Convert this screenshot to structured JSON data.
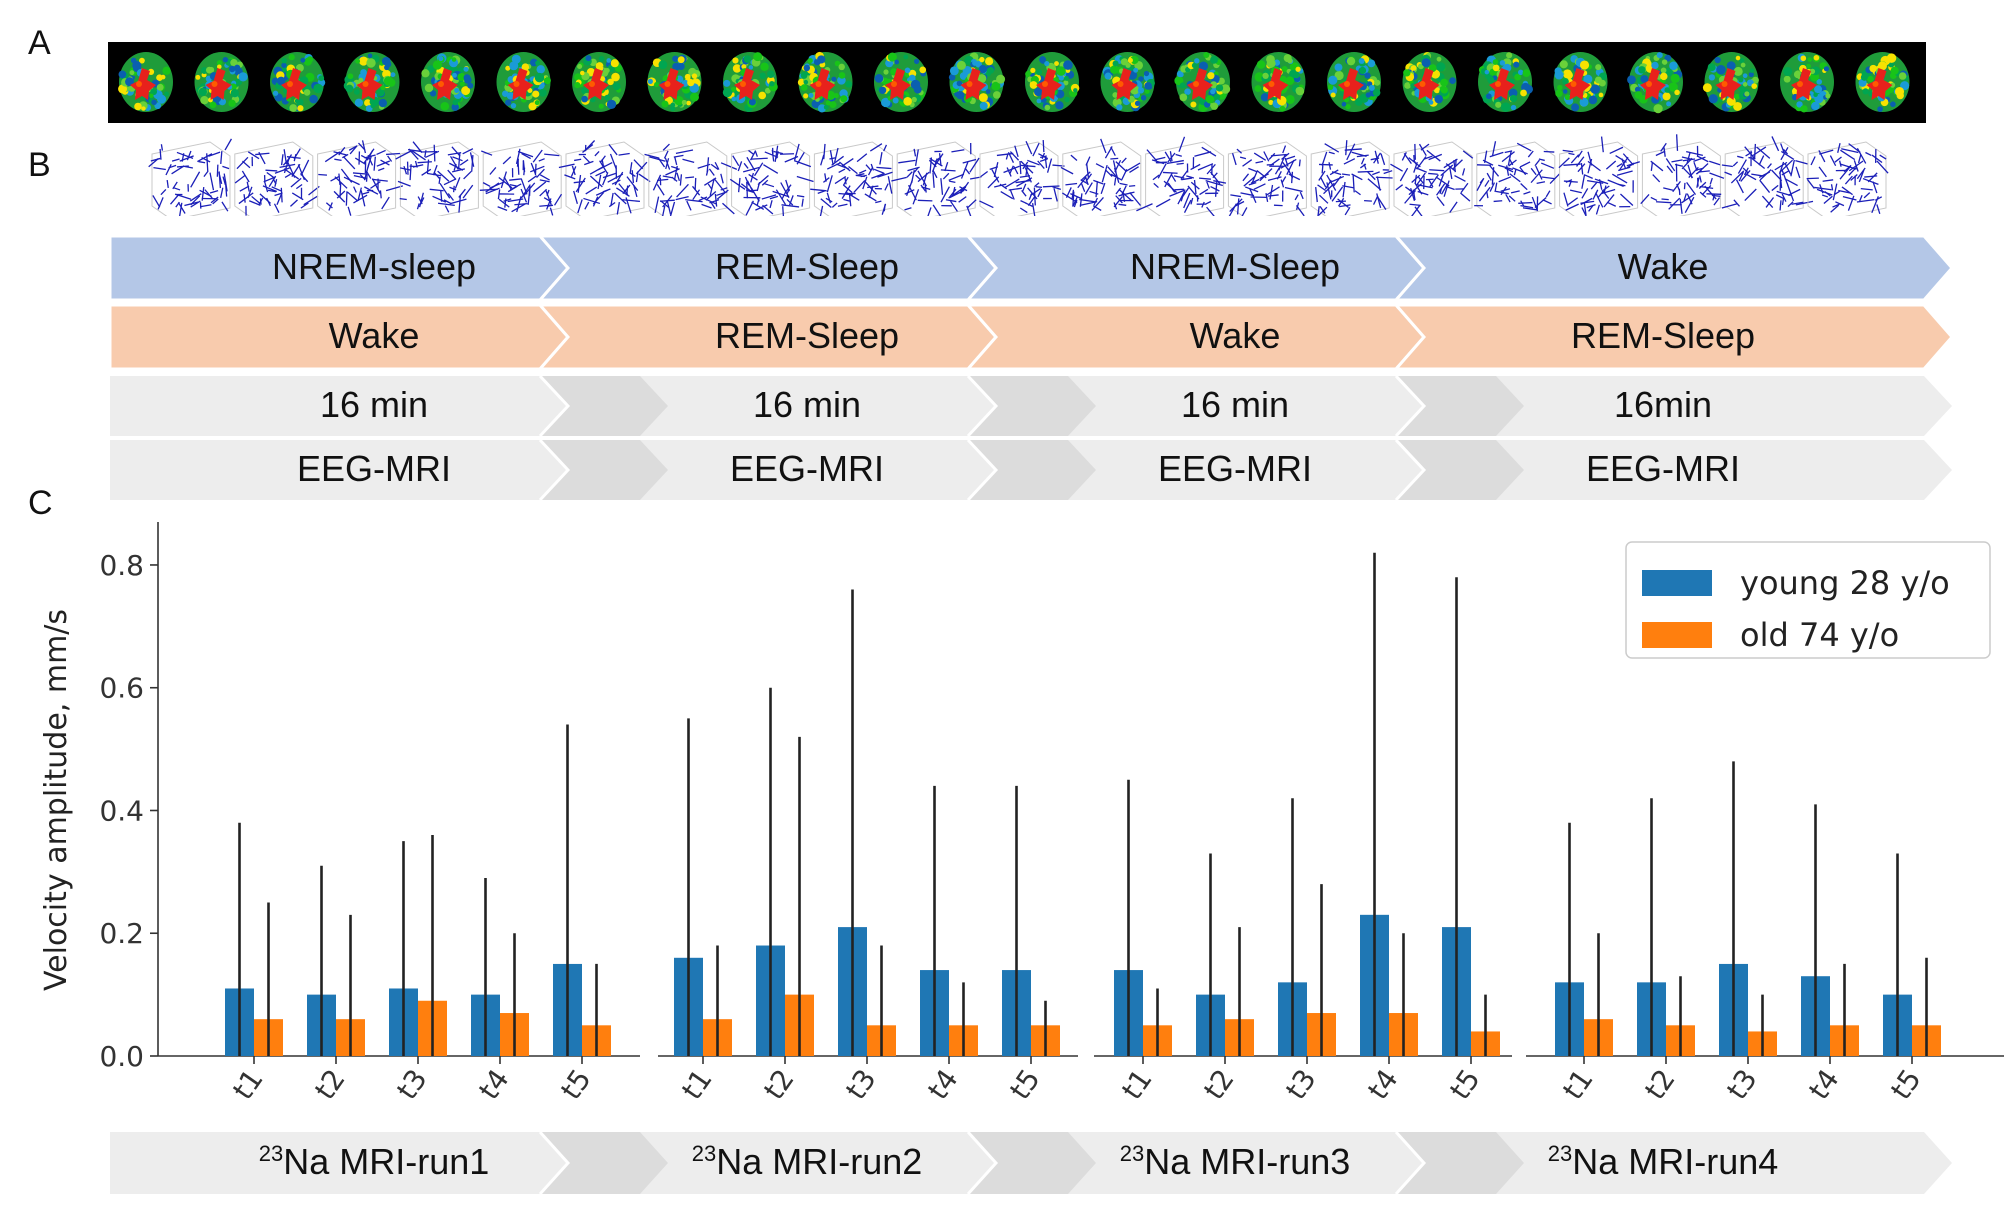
{
  "panels": {
    "a": "A",
    "b": "B",
    "c": "C"
  },
  "brain_slices": {
    "count": 24
  },
  "vector_fields": {
    "count": 21
  },
  "rows": {
    "row1": {
      "color": "#b4c7e7",
      "labels": [
        "NREM-sleep",
        "REM-Sleep",
        "NREM-Sleep",
        "Wake"
      ]
    },
    "row2": {
      "color": "#f8cbad",
      "labels": [
        "Wake",
        "REM-Sleep",
        "Wake",
        "REM-Sleep"
      ]
    },
    "row3": {
      "color": "#ededed",
      "labels": [
        "16 min",
        "16 min",
        "16 min",
        "16min"
      ]
    },
    "row4": {
      "color": "#ededed",
      "labels": [
        "EEG-MRI",
        "EEG-MRI",
        "EEG-MRI",
        "EEG-MRI"
      ]
    }
  },
  "runs": {
    "prefix": "23",
    "labels": [
      "Na MRI-run1",
      "Na MRI-run2",
      "Na MRI-run3",
      "Na MRI-run4"
    ]
  },
  "chart_data": {
    "type": "bar",
    "title": "",
    "ylabel": "Velocity amplitude, mm/s",
    "xlabel": "",
    "ylim": [
      0,
      0.87
    ],
    "yticks": [
      0.0,
      0.2,
      0.4,
      0.6,
      0.8
    ],
    "ytick_labels": [
      "0.0",
      "0.2",
      "0.4",
      "0.6",
      "0.8"
    ],
    "legend_position": "top-right",
    "colors": {
      "young": "#1f77b4",
      "old": "#ff7f0e",
      "error": "#222222"
    },
    "groups": [
      {
        "run": "run1",
        "categories": [
          "t1",
          "t2",
          "t3",
          "t4",
          "t5"
        ],
        "young": {
          "values": [
            0.11,
            0.1,
            0.11,
            0.1,
            0.15
          ],
          "err_top": [
            0.38,
            0.31,
            0.35,
            0.29,
            0.54
          ]
        },
        "old": {
          "values": [
            0.06,
            0.06,
            0.09,
            0.07,
            0.05
          ],
          "err_top": [
            0.25,
            0.23,
            0.36,
            0.2,
            0.15
          ]
        }
      },
      {
        "run": "run2",
        "categories": [
          "t1",
          "t2",
          "t3",
          "t4",
          "t5"
        ],
        "young": {
          "values": [
            0.16,
            0.18,
            0.21,
            0.14,
            0.14
          ],
          "err_top": [
            0.55,
            0.6,
            0.76,
            0.44,
            0.44
          ]
        },
        "old": {
          "values": [
            0.06,
            0.1,
            0.05,
            0.05,
            0.05
          ],
          "err_top": [
            0.18,
            0.52,
            0.18,
            0.12,
            0.09
          ]
        }
      },
      {
        "run": "run3",
        "categories": [
          "t1",
          "t2",
          "t3",
          "t4",
          "t5"
        ],
        "young": {
          "values": [
            0.14,
            0.1,
            0.12,
            0.23,
            0.21
          ],
          "err_top": [
            0.45,
            0.33,
            0.42,
            0.82,
            0.78
          ]
        },
        "old": {
          "values": [
            0.05,
            0.06,
            0.07,
            0.07,
            0.04
          ],
          "err_top": [
            0.11,
            0.21,
            0.28,
            0.2,
            0.1
          ]
        }
      },
      {
        "run": "run4",
        "categories": [
          "t1",
          "t2",
          "t3",
          "t4",
          "t5"
        ],
        "young": {
          "values": [
            0.12,
            0.12,
            0.15,
            0.13,
            0.1
          ],
          "err_top": [
            0.38,
            0.42,
            0.48,
            0.41,
            0.33
          ]
        },
        "old": {
          "values": [
            0.06,
            0.05,
            0.04,
            0.05,
            0.05
          ],
          "err_top": [
            0.2,
            0.13,
            0.1,
            0.15,
            0.16
          ]
        }
      }
    ],
    "series": [
      {
        "name": "young 28 y/o",
        "key": "young"
      },
      {
        "name": "old 74 y/o",
        "key": "old"
      }
    ]
  }
}
